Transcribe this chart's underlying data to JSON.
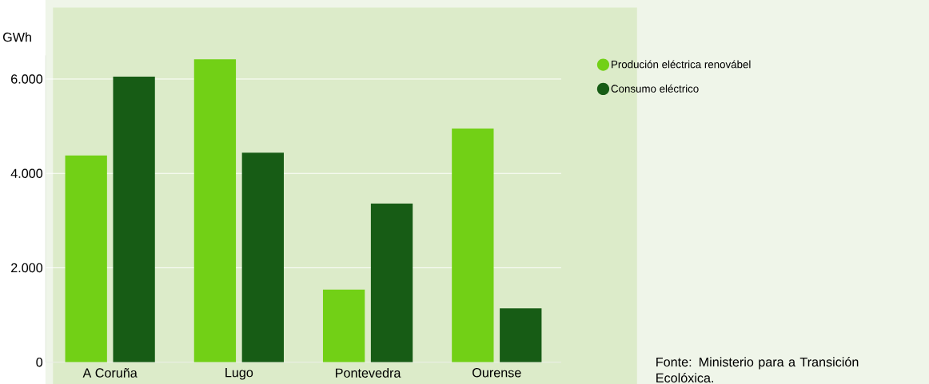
{
  "chart_data": {
    "type": "bar",
    "ylabel": "GWh",
    "categories": [
      "A Coruña",
      "Lugo",
      "Pontevedra",
      "Ourense"
    ],
    "series": [
      {
        "name": "Produción eléctrica renovábel",
        "color": "#72d016",
        "values": [
          4380,
          6420,
          1540,
          4950
        ]
      },
      {
        "name": "Consumo eléctrico",
        "color": "#175c15",
        "values": [
          6050,
          4440,
          3360,
          1140
        ]
      }
    ],
    "ylim": [
      0,
      6500
    ],
    "yticks": [
      0,
      {
        "value": 2000,
        "label": "2.000"
      },
      {
        "value": 4000,
        "label": "4.000"
      },
      {
        "value": 6000,
        "label": "6.000"
      }
    ],
    "grid": "y",
    "legend": "right",
    "annotations": [
      "Fonte: Ministerio para a Transición Ecolóxica."
    ]
  }
}
